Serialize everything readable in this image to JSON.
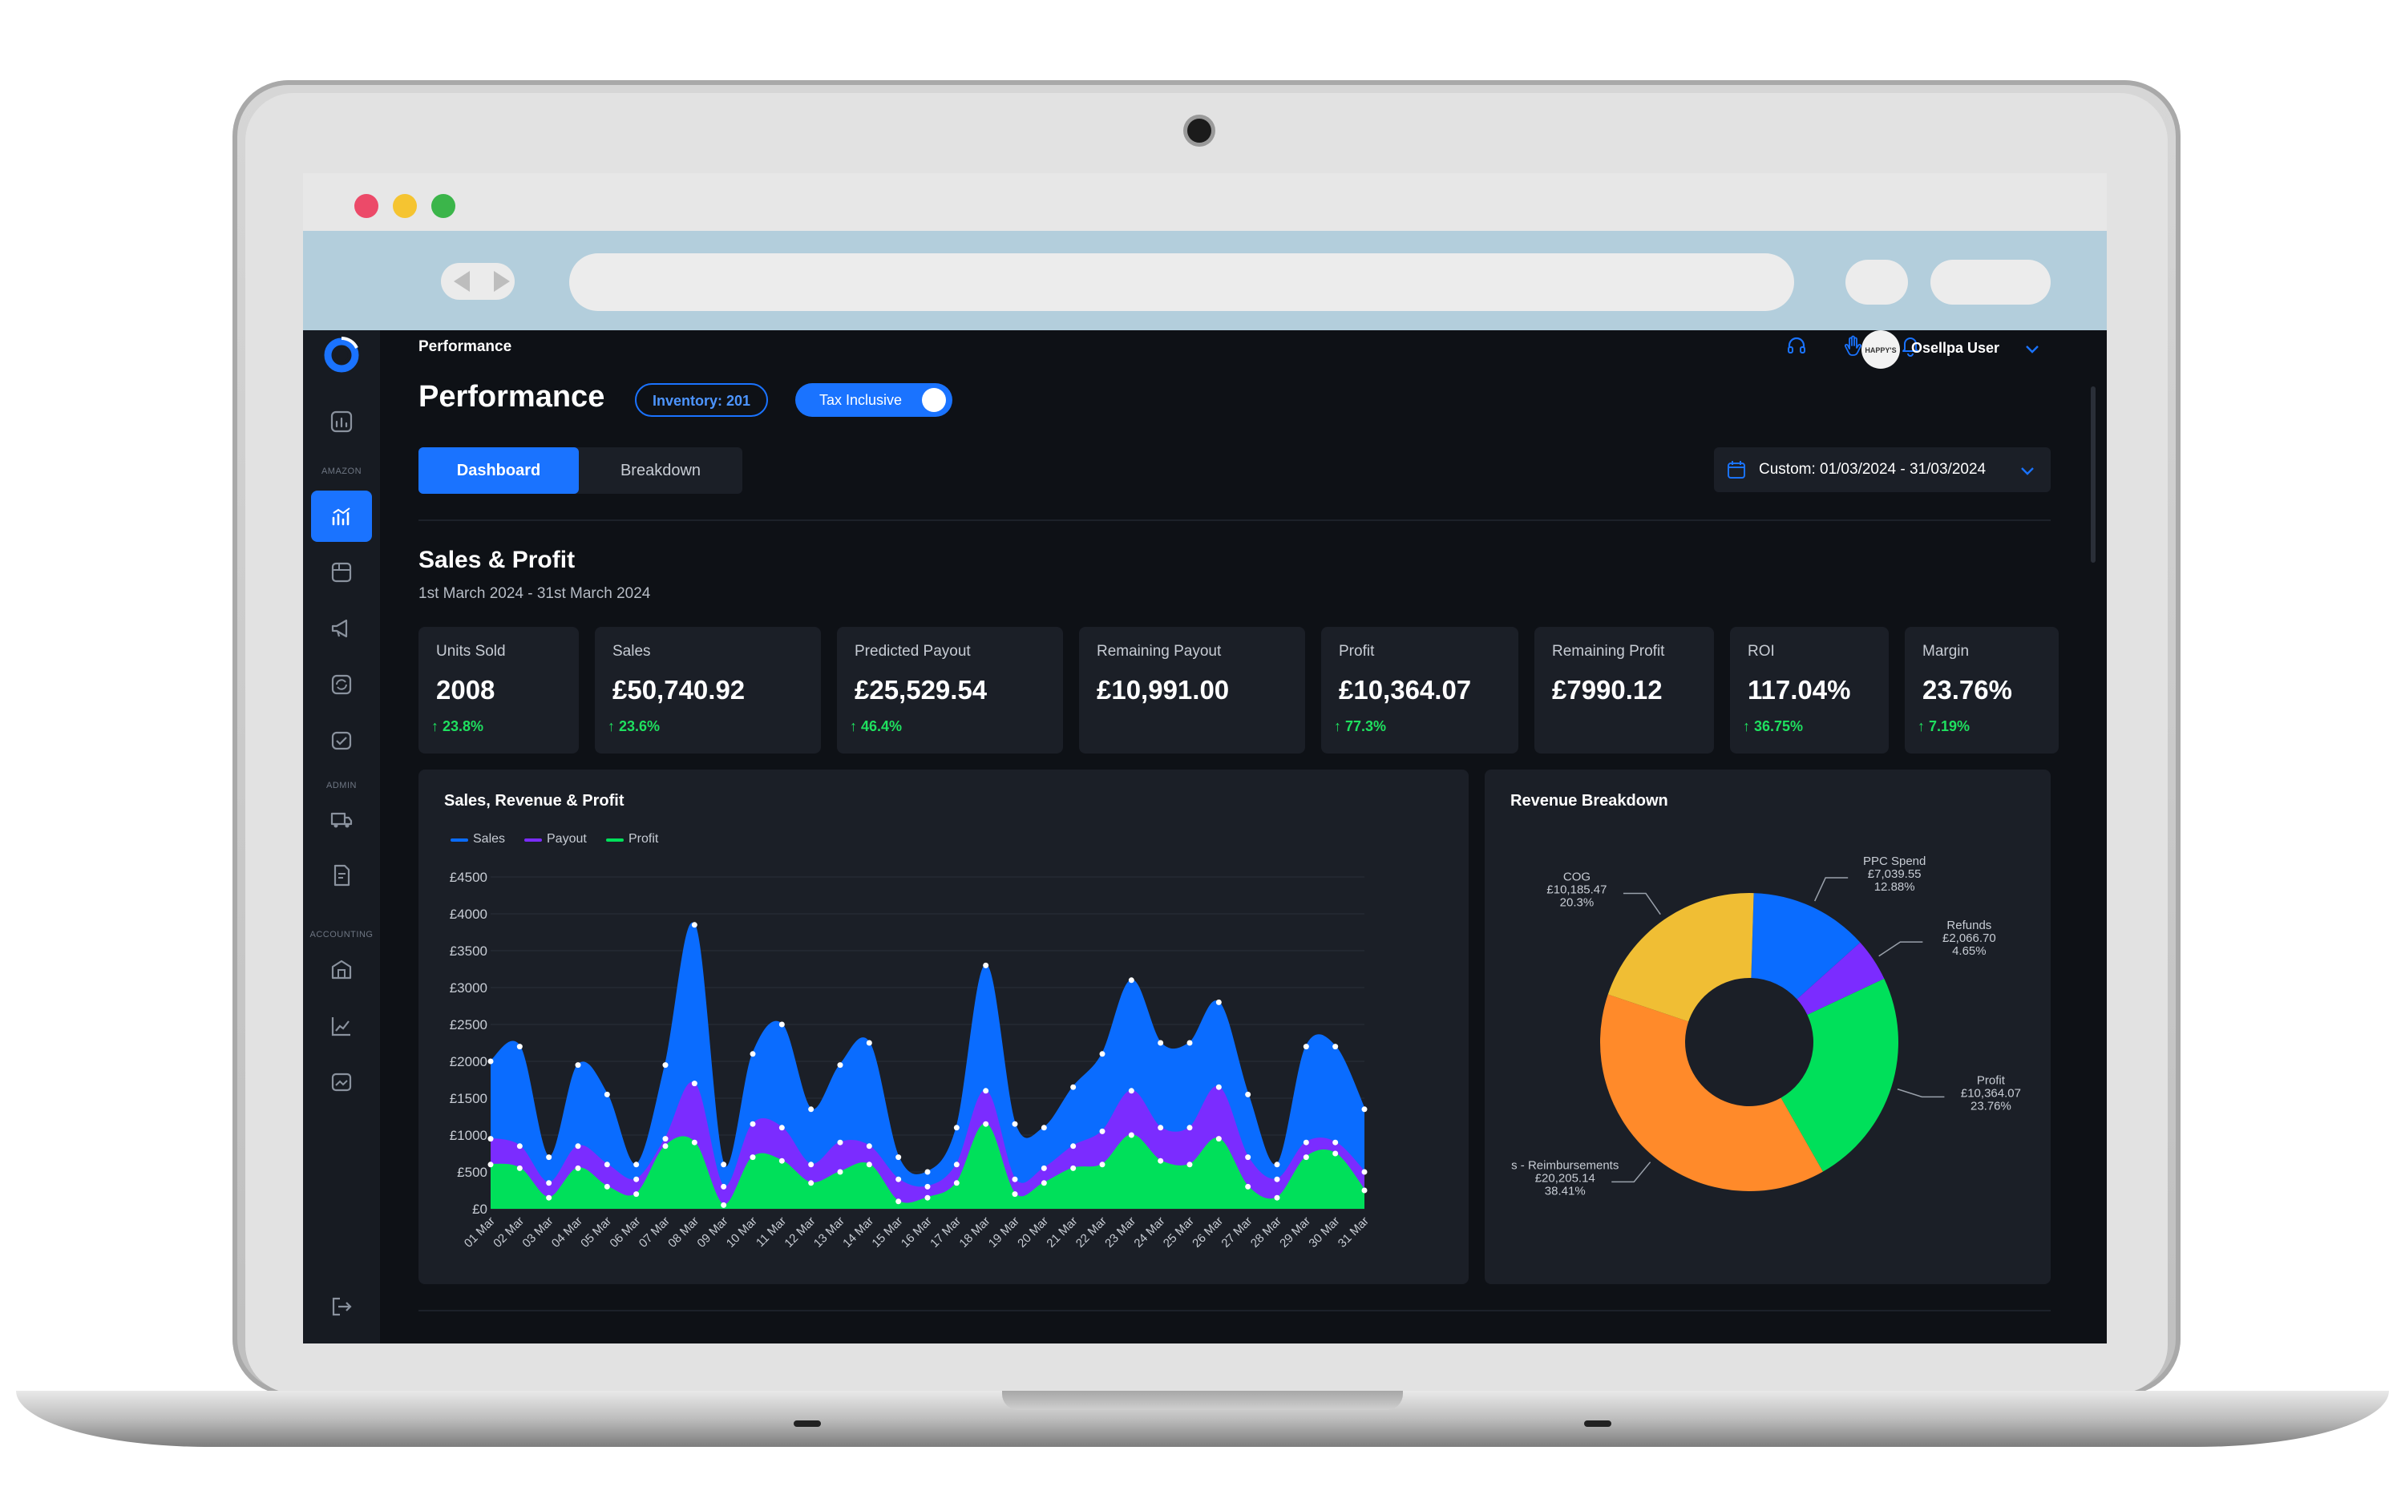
{
  "app": {
    "breadcrumb": "Performance",
    "page_title": "Performance",
    "inventory_pill": "Inventory: 201",
    "tax_toggle_label": "Tax Inclusive",
    "tax_toggle_on": true,
    "user_name": "Osellpa User",
    "avatar_text": "HAPPY'S",
    "accent_color": "#1a73ff"
  },
  "sidebar": {
    "sections": [
      "AMAZON",
      "ADMIN",
      "ACCOUNTING"
    ],
    "icons": [
      "dashboard-icon",
      "performance-icon",
      "inventory-icon",
      "megaphone-icon",
      "sync-icon",
      "orders-icon",
      "shipping-icon",
      "documents-icon",
      "bank-icon",
      "reports-icon",
      "folder-icon",
      "logout-icon"
    ]
  },
  "tabs": {
    "items": [
      {
        "label": "Dashboard",
        "active": true
      },
      {
        "label": "Breakdown",
        "active": false
      }
    ],
    "date_range": "Custom: 01/03/2024 - 31/03/2024"
  },
  "sales_profit": {
    "title": "Sales & Profit",
    "subtitle": "1st March 2024 - 31st March 2024",
    "cards": [
      {
        "label": "Units Sold",
        "value": "2008",
        "change": "23.8%"
      },
      {
        "label": "Sales",
        "value": "£50,740.92",
        "change": "23.6%"
      },
      {
        "label": "Predicted Payout",
        "value": "£25,529.54",
        "change": "46.4%"
      },
      {
        "label": "Remaining Payout",
        "value": "£10,991.00",
        "change": ""
      },
      {
        "label": "Profit",
        "value": "£10,364.07",
        "change": "77.3%"
      },
      {
        "label": "Remaining Profit",
        "value": "£7990.12",
        "change": ""
      },
      {
        "label": "ROI",
        "value": "117.04%",
        "change": "36.75%"
      },
      {
        "label": "Margin",
        "value": "23.76%",
        "change": "7.19%"
      }
    ]
  },
  "chart_data": [
    {
      "type": "area",
      "title": "Sales, Revenue & Profit",
      "x": [
        "01 Mar",
        "02 Mar",
        "03 Mar",
        "04 Mar",
        "05 Mar",
        "06 Mar",
        "07 Mar",
        "08 Mar",
        "09 Mar",
        "10 Mar",
        "11 Mar",
        "12 Mar",
        "13 Mar",
        "14 Mar",
        "15 Mar",
        "16 Mar",
        "17 Mar",
        "18 Mar",
        "19 Mar",
        "20 Mar",
        "21 Mar",
        "22 Mar",
        "23 Mar",
        "24 Mar",
        "25 Mar",
        "26 Mar",
        "27 Mar",
        "28 Mar",
        "29 Mar",
        "30 Mar",
        "31 Mar"
      ],
      "ylim": [
        0,
        4500
      ],
      "yticks": [
        "£0",
        "£500",
        "£1000",
        "£1500",
        "£2000",
        "£2500",
        "£3000",
        "£3500",
        "£4000",
        "£4500"
      ],
      "series": [
        {
          "name": "Sales",
          "color": "#0a6cff",
          "values": [
            2000,
            2200,
            700,
            1950,
            1550,
            600,
            1950,
            3850,
            600,
            2100,
            2500,
            1350,
            1950,
            2250,
            700,
            500,
            1100,
            3300,
            1150,
            1100,
            1650,
            2100,
            3100,
            2250,
            2250,
            2800,
            1550,
            600,
            2200,
            2200,
            1350
          ]
        },
        {
          "name": "Payout",
          "color": "#7b2cff",
          "values": [
            950,
            850,
            350,
            850,
            600,
            400,
            950,
            1700,
            300,
            1150,
            1100,
            600,
            900,
            850,
            400,
            300,
            600,
            1600,
            400,
            550,
            850,
            1050,
            1600,
            1100,
            1100,
            1650,
            700,
            400,
            900,
            900,
            500
          ]
        },
        {
          "name": "Profit",
          "color": "#00e05a",
          "values": [
            600,
            550,
            150,
            550,
            300,
            200,
            850,
            900,
            50,
            700,
            650,
            350,
            500,
            600,
            100,
            150,
            350,
            1150,
            200,
            350,
            550,
            600,
            1000,
            650,
            600,
            950,
            300,
            150,
            700,
            750,
            250
          ]
        }
      ]
    },
    {
      "type": "pie",
      "title": "Revenue Breakdown",
      "slices": [
        {
          "label": "PPC Spend",
          "value": "£7,039.55",
          "percent": 12.88,
          "percent_text": "12.88%",
          "color": "#0a6cff"
        },
        {
          "label": "Refunds",
          "value": "£2,066.70",
          "percent": 4.65,
          "percent_text": "4.65%",
          "color": "#7b2cff"
        },
        {
          "label": "Profit",
          "value": "£10,364.07",
          "percent": 23.76,
          "percent_text": "23.76%",
          "color": "#00e05a"
        },
        {
          "label": "s - Reimbursements",
          "value": "£20,205.14",
          "percent": 38.41,
          "percent_text": "38.41%",
          "color": "#ff8a2a"
        },
        {
          "label": "COG",
          "value": "£10,185.47",
          "percent": 20.3,
          "percent_text": "20.3%",
          "color": "#f0be34"
        }
      ]
    }
  ]
}
